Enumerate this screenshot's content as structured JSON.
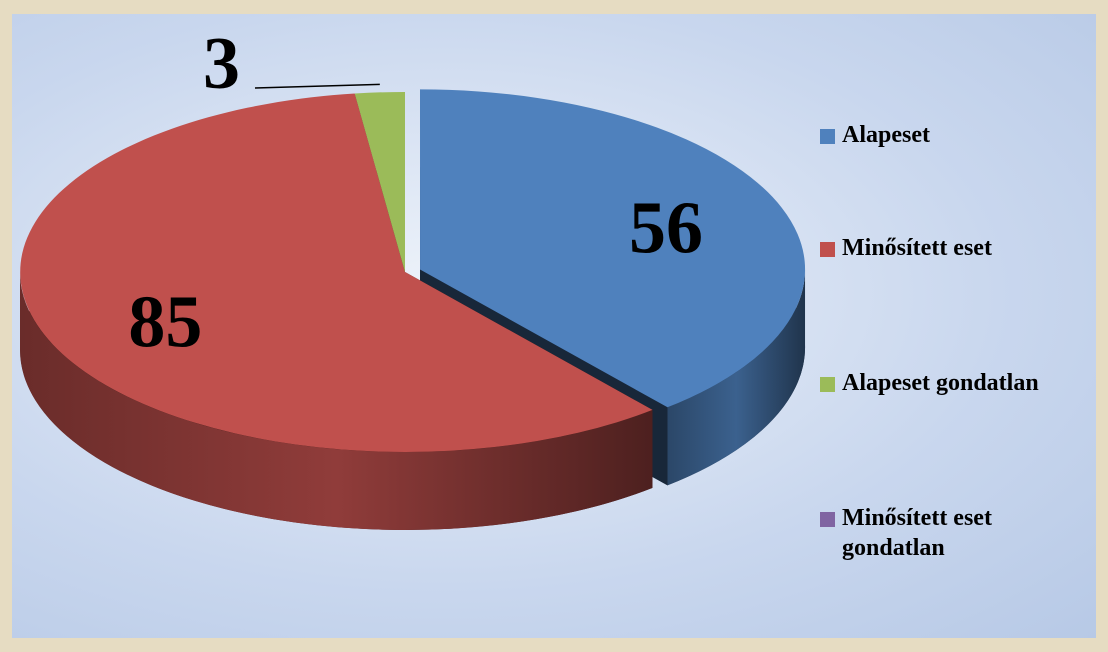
{
  "chart_data": {
    "type": "pie",
    "categories": [
      "Alapeset",
      "Minősített eset",
      "Alapeset gondatlan",
      "Minősített eset gondatlan"
    ],
    "values": [
      56,
      85,
      3,
      0
    ],
    "colors": [
      "#4f81bd",
      "#c0504d",
      "#9bbb59",
      "#8064a2"
    ],
    "legend": "right"
  }
}
